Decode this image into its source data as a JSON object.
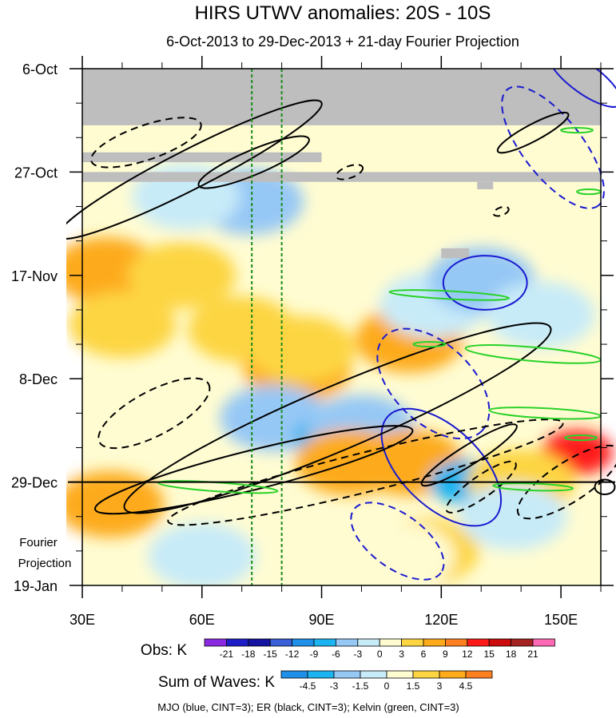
{
  "chart_data": {
    "type": "heatmap",
    "title": "HIRS UTWV anomalies: 20S - 10S",
    "subtitle": "6-Oct-2013 to 29-Dec-2013 + 21-day Fourier Projection",
    "x_axis": {
      "range": [
        30,
        160
      ],
      "units": "degrees E",
      "ticks": [
        {
          "value": 30,
          "label": "30E"
        },
        {
          "value": 60,
          "label": "60E"
        },
        {
          "value": 90,
          "label": "90E"
        },
        {
          "value": 120,
          "label": "120E"
        },
        {
          "value": 150,
          "label": "150E"
        }
      ]
    },
    "y_axis": {
      "range_days": [
        0,
        105
      ],
      "direction": "time increasing downward",
      "ticks": [
        {
          "day": 0,
          "label": "6-Oct"
        },
        {
          "day": 21,
          "label": "27-Oct"
        },
        {
          "day": 42,
          "label": "17-Nov"
        },
        {
          "day": 63,
          "label": "8-Dec"
        },
        {
          "day": 84,
          "label": "29-Dec"
        },
        {
          "day": 105,
          "label": "19-Jan"
        }
      ],
      "forecast_label_line1": "Fourier",
      "forecast_label_line2": "Projection"
    },
    "observation_end_day": 84,
    "reference_longitudes": [
      72.5,
      80
    ],
    "missing_data": [
      {
        "lon": [
          30,
          160
        ],
        "days": [
          0,
          11.5
        ]
      },
      {
        "lon": [
          30,
          90
        ],
        "days": [
          17,
          19
        ]
      },
      {
        "lon": [
          30,
          160
        ],
        "days": [
          21,
          23
        ]
      },
      {
        "lon": [
          129,
          133
        ],
        "days": [
          23,
          24.5
        ]
      },
      {
        "lon": [
          120,
          127
        ],
        "days": [
          36.5,
          38.5
        ]
      }
    ],
    "obs_colorbar": {
      "label": "Obs: K",
      "levels": [
        "-21",
        "-18",
        "-15",
        "-12",
        "-9",
        "-6",
        "-3",
        "0",
        "3",
        "6",
        "9",
        "12",
        "15",
        "18",
        "21"
      ],
      "colors": [
        "#8a2be2",
        "#1e1ec8",
        "#1414a0",
        "#3a5fd6",
        "#1f8fe8",
        "#1cb4f0",
        "#96c8f5",
        "#c8ebf8",
        "#fffcd2",
        "#fdd542",
        "#fdab1b",
        "#fe8020",
        "#ff1a1a",
        "#cc0c0c",
        "#a52222",
        "#ff69b4"
      ]
    },
    "waves_colorbar": {
      "label": "Sum of Waves: K",
      "levels": [
        "-4.5",
        "-3",
        "-1.5",
        "0",
        "1.5",
        "3",
        "4.5"
      ],
      "colors": [
        "#1f8fe8",
        "#1cb4f0",
        "#96c8f5",
        "#c8ebf8",
        "#fffcd2",
        "#fdd542",
        "#fdab1b",
        "#fe8020"
      ]
    },
    "anomaly_features": [
      {
        "lon": 36,
        "day": 41,
        "value": 6
      },
      {
        "lon": 37,
        "day": 88.5,
        "value": 6
      },
      {
        "lon": 40,
        "day": 52,
        "value": 4.5
      },
      {
        "lon": 55,
        "day": 42,
        "value": 3
      },
      {
        "lon": 72,
        "day": 27,
        "value": -4.5
      },
      {
        "lon": 56,
        "day": 26,
        "value": -3
      },
      {
        "lon": 70,
        "day": 53,
        "value": 3
      },
      {
        "lon": 84,
        "day": 61,
        "value": 6
      },
      {
        "lon": 85,
        "day": 57,
        "value": 4.5
      },
      {
        "lon": 78,
        "day": 71,
        "value": -6
      },
      {
        "lon": 92,
        "day": 75,
        "value": -9
      },
      {
        "lon": 100,
        "day": 73,
        "value": -4.5
      },
      {
        "lon": 112,
        "day": 55,
        "value": 6
      },
      {
        "lon": 118,
        "day": 48,
        "value": -3
      },
      {
        "lon": 130,
        "day": 43,
        "value": -6
      },
      {
        "lon": 145,
        "day": 50,
        "value": -3
      },
      {
        "lon": 97,
        "day": 80,
        "value": 6
      },
      {
        "lon": 112,
        "day": 80,
        "value": 6
      },
      {
        "lon": 126,
        "day": 84,
        "value": -9
      },
      {
        "lon": 154,
        "day": 78,
        "value": 12
      },
      {
        "lon": 140,
        "day": 84,
        "value": 4.5
      },
      {
        "lon": 116,
        "day": 98,
        "value": 3
      },
      {
        "lon": 110,
        "day": 99,
        "value": 1.5
      },
      {
        "lon": 138,
        "day": 91,
        "value": -1.5
      },
      {
        "lon": 60,
        "day": 99,
        "value": -1.5
      }
    ],
    "wave_contours": [
      {
        "wave": "MJO",
        "sign": "positive",
        "lon": 131,
        "day": 43.5,
        "lon_half_width": 10.5,
        "day_half_width": 5.5,
        "angle": 0
      },
      {
        "wave": "MJO",
        "sign": "negative",
        "lon": 109,
        "day": 96,
        "lon_half_width": 13.5,
        "day_half_width": 5.5,
        "angle": 36
      },
      {
        "wave": "MJO",
        "sign": "negative",
        "lon": 118,
        "day": 64,
        "lon_half_width": 17,
        "day_half_width": 8,
        "angle": 44
      },
      {
        "wave": "MJO",
        "sign": "positive",
        "lon": 120,
        "day": 81,
        "lon_half_width": 18.5,
        "day_half_width": 8,
        "angle": 44
      },
      {
        "wave": "MJO",
        "sign": "negative",
        "lon": 148,
        "day": 16,
        "lon_half_width": 18.5,
        "day_half_width": 6,
        "angle": 52
      },
      {
        "wave": "MJO",
        "sign": "positive",
        "lon": 156,
        "day": 2,
        "lon_half_width": 11,
        "day_half_width": 3,
        "angle": 36
      },
      {
        "wave": "ER",
        "sign": "negative",
        "lon": 46,
        "day": 15,
        "lon_half_width": 14.5,
        "day_half_width": 3.5,
        "angle": -19
      },
      {
        "wave": "ER",
        "sign": "positive",
        "lon": 57,
        "day": 20.5,
        "lon_half_width": 37,
        "day_half_width": 4,
        "angle": -27
      },
      {
        "wave": "ER",
        "sign": "positive",
        "lon": 73,
        "day": 19,
        "lon_half_width": 15,
        "day_half_width": 2.5,
        "angle": -23
      },
      {
        "wave": "ER",
        "sign": "negative",
        "lon": 48,
        "day": 70,
        "lon_half_width": 15.5,
        "day_half_width": 4.5,
        "angle": -28
      },
      {
        "wave": "ER",
        "sign": "positive",
        "lon": 94,
        "day": 71,
        "lon_half_width": 58,
        "day_half_width": 6.5,
        "angle": -23
      },
      {
        "wave": "ER",
        "sign": "negative",
        "lon": 101,
        "day": 82,
        "lon_half_width": 51,
        "day_half_width": 4,
        "angle": -14
      },
      {
        "wave": "ER",
        "sign": "positive",
        "lon": 73,
        "day": 81.5,
        "lon_half_width": 41,
        "day_half_width": 4,
        "angle": -14
      },
      {
        "wave": "ER",
        "sign": "positive",
        "lon": 127,
        "day": 78.5,
        "lon_half_width": 14,
        "day_half_width": 2,
        "angle": -32
      },
      {
        "wave": "ER",
        "sign": "negative",
        "lon": 152,
        "day": 84,
        "lon_half_width": 15,
        "day_half_width": 4,
        "angle": -33
      },
      {
        "wave": "ER",
        "sign": "negative",
        "lon": 130,
        "day": 85,
        "lon_half_width": 10.5,
        "day_half_width": 2.2,
        "angle": -35
      },
      {
        "wave": "ER",
        "sign": "positive",
        "lon": 143,
        "day": 13,
        "lon_half_width": 10,
        "day_half_width": 1.7,
        "angle": -28
      },
      {
        "wave": "ER",
        "sign": "negative",
        "lon": 97,
        "day": 21,
        "lon_half_width": 3.5,
        "day_half_width": 1.2,
        "angle": -20
      },
      {
        "wave": "ER",
        "sign": "positive",
        "lon": 161,
        "day": 85,
        "lon_half_width": 2.5,
        "day_half_width": 1.5,
        "angle": 0
      },
      {
        "wave": "ER",
        "sign": "negative",
        "lon": 135,
        "day": 29,
        "lon_half_width": 2,
        "day_half_width": 0.8,
        "angle": -20
      },
      {
        "wave": "Kelvin",
        "sign": "positive",
        "lon": 122,
        "day": 46,
        "lon_half_width": 15,
        "day_half_width": 0.8,
        "angle": 3
      },
      {
        "wave": "Kelvin",
        "sign": "positive",
        "lon": 143,
        "day": 58,
        "lon_half_width": 17,
        "day_half_width": 1.4,
        "angle": 5
      },
      {
        "wave": "Kelvin",
        "sign": "positive",
        "lon": 146,
        "day": 70,
        "lon_half_width": 14,
        "day_half_width": 1,
        "angle": 3
      },
      {
        "wave": "Kelvin",
        "sign": "positive",
        "lon": 64,
        "day": 85,
        "lon_half_width": 15,
        "day_half_width": 0.9,
        "angle": 4
      },
      {
        "wave": "Kelvin",
        "sign": "positive",
        "lon": 143,
        "day": 85,
        "lon_half_width": 10,
        "day_half_width": 0.7,
        "angle": 2
      },
      {
        "wave": "Kelvin",
        "sign": "positive",
        "lon": 154,
        "day": 12.5,
        "lon_half_width": 4,
        "day_half_width": 0.5,
        "angle": 0
      },
      {
        "wave": "Kelvin",
        "sign": "positive",
        "lon": 157,
        "day": 25,
        "lon_half_width": 3,
        "day_half_width": 0.5,
        "angle": 0
      },
      {
        "wave": "Kelvin",
        "sign": "positive",
        "lon": 117,
        "day": 56,
        "lon_half_width": 4,
        "day_half_width": 0.5,
        "angle": 0
      },
      {
        "wave": "Kelvin",
        "sign": "positive",
        "lon": 155,
        "day": 75,
        "lon_half_width": 4,
        "day_half_width": 0.5,
        "angle": 0
      }
    ],
    "footer_caption": "MJO (blue, CINT=3); ER (black, CINT=3); Kelvin (green, CINT=3)"
  },
  "wave_colors": {
    "MJO": "#1a1ad0",
    "ER": "#000000",
    "Kelvin": "#28d228"
  },
  "missing_color": "#bebebe",
  "reference_line_color": "#1a8c1a"
}
